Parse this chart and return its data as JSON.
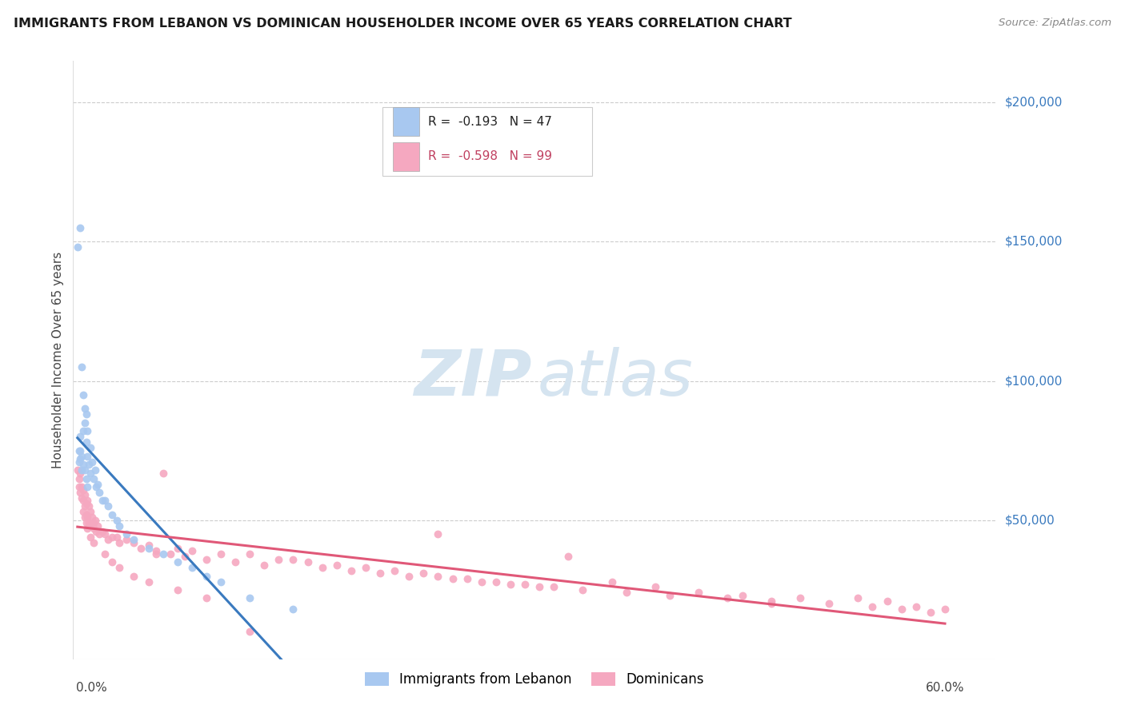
{
  "title": "IMMIGRANTS FROM LEBANON VS DOMINICAN HOUSEHOLDER INCOME OVER 65 YEARS CORRELATION CHART",
  "source": "Source: ZipAtlas.com",
  "ylabel": "Householder Income Over 65 years",
  "y_tick_labels": [
    "$50,000",
    "$100,000",
    "$150,000",
    "$200,000"
  ],
  "y_tick_values": [
    50000,
    100000,
    150000,
    200000
  ],
  "ylim": [
    0,
    215000
  ],
  "xlim": [
    -0.002,
    0.635
  ],
  "legend_lebanon_R": "-0.193",
  "legend_lebanon_N": "47",
  "legend_dominican_R": "-0.598",
  "legend_dominican_N": "99",
  "blue_color": "#a8c8f0",
  "pink_color": "#f5a8c0",
  "blue_line_color": "#3a7abf",
  "pink_line_color": "#e05878",
  "dashed_line_color": "#a0b8d0",
  "background_color": "#ffffff",
  "watermark_color": "#d5e4f0",
  "lebanon_x": [
    0.001,
    0.003,
    0.002,
    0.003,
    0.003,
    0.004,
    0.004,
    0.005,
    0.005,
    0.006,
    0.006,
    0.007,
    0.007,
    0.008,
    0.008,
    0.009,
    0.01,
    0.01,
    0.011,
    0.012,
    0.013,
    0.014,
    0.015,
    0.016,
    0.018,
    0.02,
    0.022,
    0.025,
    0.028,
    0.03,
    0.035,
    0.04,
    0.05,
    0.06,
    0.07,
    0.08,
    0.09,
    0.1,
    0.12,
    0.15,
    0.002,
    0.003,
    0.004,
    0.005,
    0.006,
    0.007,
    0.008
  ],
  "lebanon_y": [
    148000,
    155000,
    75000,
    72000,
    80000,
    68000,
    105000,
    82000,
    95000,
    85000,
    90000,
    78000,
    88000,
    73000,
    82000,
    70000,
    76000,
    67000,
    71000,
    65000,
    68000,
    62000,
    63000,
    60000,
    57000,
    57000,
    55000,
    52000,
    50000,
    48000,
    45000,
    43000,
    40000,
    38000,
    35000,
    33000,
    30000,
    28000,
    22000,
    18000,
    71000,
    75000,
    73000,
    70000,
    68000,
    65000,
    62000
  ],
  "dominican_x": [
    0.001,
    0.002,
    0.002,
    0.003,
    0.003,
    0.004,
    0.004,
    0.005,
    0.005,
    0.006,
    0.006,
    0.007,
    0.007,
    0.008,
    0.008,
    0.009,
    0.009,
    0.01,
    0.01,
    0.011,
    0.012,
    0.012,
    0.013,
    0.014,
    0.015,
    0.016,
    0.018,
    0.02,
    0.022,
    0.025,
    0.028,
    0.03,
    0.035,
    0.04,
    0.045,
    0.05,
    0.055,
    0.06,
    0.065,
    0.07,
    0.075,
    0.08,
    0.09,
    0.1,
    0.11,
    0.12,
    0.13,
    0.14,
    0.15,
    0.16,
    0.17,
    0.18,
    0.19,
    0.2,
    0.21,
    0.22,
    0.23,
    0.24,
    0.25,
    0.26,
    0.27,
    0.28,
    0.29,
    0.3,
    0.31,
    0.32,
    0.33,
    0.35,
    0.37,
    0.38,
    0.4,
    0.41,
    0.43,
    0.45,
    0.46,
    0.48,
    0.5,
    0.52,
    0.54,
    0.55,
    0.56,
    0.57,
    0.58,
    0.59,
    0.6,
    0.055,
    0.12,
    0.25,
    0.34,
    0.48,
    0.005,
    0.006,
    0.007,
    0.008,
    0.01,
    0.012,
    0.02,
    0.025,
    0.03,
    0.04,
    0.05,
    0.07,
    0.09
  ],
  "dominican_y": [
    68000,
    65000,
    62000,
    60000,
    67000,
    58000,
    62000,
    57000,
    61000,
    55000,
    59000,
    56000,
    52000,
    57000,
    51000,
    55000,
    49000,
    53000,
    48000,
    51000,
    49000,
    47000,
    50000,
    46000,
    48000,
    45000,
    46000,
    45000,
    43000,
    44000,
    44000,
    42000,
    43000,
    42000,
    40000,
    41000,
    39000,
    67000,
    38000,
    40000,
    37000,
    39000,
    36000,
    38000,
    35000,
    38000,
    34000,
    36000,
    36000,
    35000,
    33000,
    34000,
    32000,
    33000,
    31000,
    32000,
    30000,
    31000,
    30000,
    29000,
    29000,
    28000,
    28000,
    27000,
    27000,
    26000,
    26000,
    25000,
    28000,
    24000,
    26000,
    23000,
    24000,
    22000,
    23000,
    21000,
    22000,
    20000,
    22000,
    19000,
    21000,
    18000,
    19000,
    17000,
    18000,
    38000,
    10000,
    45000,
    37000,
    20000,
    53000,
    51000,
    49000,
    47000,
    44000,
    42000,
    38000,
    35000,
    33000,
    30000,
    28000,
    25000,
    22000
  ]
}
